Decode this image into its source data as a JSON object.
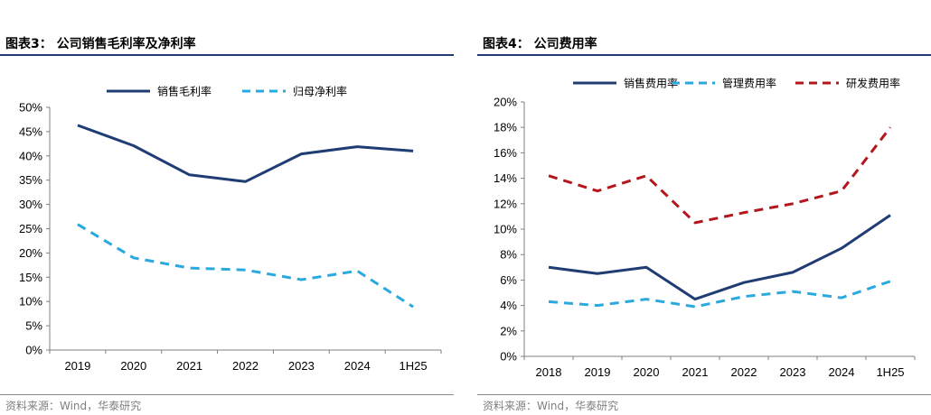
{
  "charts": [
    {
      "panel_title": "图表3：  公司销售毛利率及净利率",
      "source": "资料来源：Wind，华泰研究"
    },
    {
      "panel_title": "图表4：  公司费用率",
      "source": "资料来源：Wind，华泰研究"
    }
  ],
  "chart_data": [
    {
      "type": "line",
      "title": "公司销售毛利率及净利率",
      "categories": [
        "2019",
        "2020",
        "2021",
        "2022",
        "2023",
        "2024",
        "1H25"
      ],
      "series": [
        {
          "name": "销售毛利率",
          "values": [
            46.3,
            42.1,
            36.1,
            34.7,
            40.4,
            41.9,
            41.0
          ],
          "color": "#1f3d73",
          "style": "solid"
        },
        {
          "name": "归母净利率",
          "values": [
            25.9,
            19.0,
            16.9,
            16.5,
            14.5,
            16.3,
            8.9
          ],
          "color": "#2aa9df",
          "style": "dashed"
        }
      ],
      "ylim": [
        0,
        50
      ],
      "yticks": [
        "0%",
        "5%",
        "10%",
        "15%",
        "20%",
        "25%",
        "30%",
        "35%",
        "40%",
        "45%",
        "50%"
      ],
      "legend": "top-center",
      "grid": false
    },
    {
      "type": "line",
      "title": "公司费用率",
      "categories": [
        "2018",
        "2019",
        "2020",
        "2021",
        "2022",
        "2023",
        "2024",
        "1H25"
      ],
      "series": [
        {
          "name": "销售费用率",
          "values": [
            7.0,
            6.5,
            7.0,
            4.5,
            5.8,
            6.6,
            8.5,
            11.1
          ],
          "color": "#1f3d73",
          "style": "solid"
        },
        {
          "name": "管理费用率",
          "values": [
            4.3,
            4.0,
            4.5,
            3.9,
            4.7,
            5.1,
            4.6,
            5.9
          ],
          "color": "#2aa9df",
          "style": "dashed"
        },
        {
          "name": "研发费用率",
          "values": [
            14.2,
            13.0,
            14.2,
            10.5,
            11.3,
            12.0,
            13.0,
            18.0
          ],
          "color": "#b3161c",
          "style": "dashed"
        }
      ],
      "ylim": [
        0,
        20
      ],
      "yticks": [
        "0%",
        "2%",
        "4%",
        "6%",
        "8%",
        "10%",
        "12%",
        "14%",
        "16%",
        "18%",
        "20%"
      ],
      "legend": "top-center",
      "grid": false
    }
  ]
}
